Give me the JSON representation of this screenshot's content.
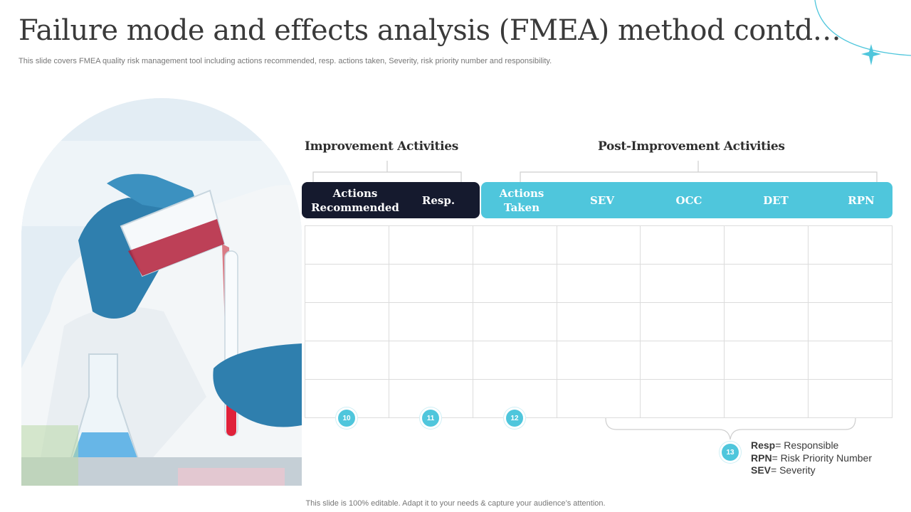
{
  "slide": {
    "title": "Failure mode and effects analysis (FMEA) method contd…",
    "subtitle": "This slide covers FMEA quality risk management tool including actions recommended, resp. actions taken, Severity, risk priority number and responsibility.",
    "footer": "This slide is 100% editable. Adapt it to your needs & capture your audience’s attention."
  },
  "sections": {
    "improvement": "Improvement Activities",
    "post_improvement": "Post-Improvement Activities"
  },
  "headers": {
    "improvement": [
      "Actions Recommended",
      "Resp."
    ],
    "post_improvement": [
      "Actions Taken",
      "SEV",
      "OCC",
      "DET",
      "RPN"
    ]
  },
  "table": {
    "rows": [
      [
        "",
        "",
        "",
        "",
        "",
        "",
        ""
      ],
      [
        "",
        "",
        "",
        "",
        "",
        "",
        ""
      ],
      [
        "",
        "",
        "",
        "",
        "",
        "",
        ""
      ],
      [
        "",
        "",
        "",
        "",
        "",
        "",
        ""
      ],
      [
        "",
        "",
        "",
        "",
        "",
        "",
        ""
      ]
    ]
  },
  "badges": [
    "10",
    "11",
    "12",
    "13"
  ],
  "legend": [
    {
      "abbr": "Resp",
      "text": "= Responsible"
    },
    {
      "abbr": "RPN",
      "text": "= Risk Priority Number"
    },
    {
      "abbr": "SEV",
      "text": "= Severity"
    }
  ],
  "colors": {
    "accent": "#4fc6dc",
    "dark_header": "#151a2e",
    "grid_line": "#dcdcdc",
    "title_text": "#3a3a3a"
  },
  "image": {
    "description_icon": "lab-scientist-pouring-liquid-photo"
  }
}
